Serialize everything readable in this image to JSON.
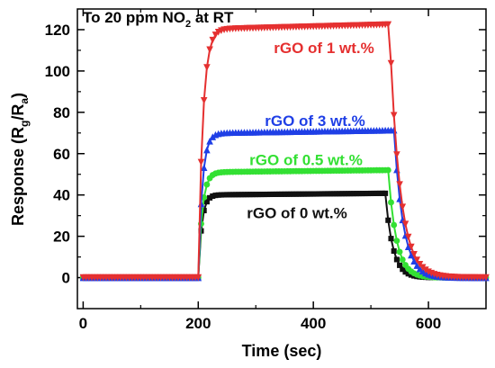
{
  "chart_data": {
    "type": "scatter",
    "title_prefix": "To 20 ppm NO",
    "title_subscript": "2",
    "title_suffix": " at RT",
    "xlabel": "Time (sec)",
    "ylabel_prefix": "Response (R",
    "ylabel_sub1": "g",
    "ylabel_mid": "/R",
    "ylabel_sub2": "a",
    "ylabel_suffix": ")",
    "xlim": [
      -10,
      700
    ],
    "ylim": [
      -15,
      130
    ],
    "xticks": [
      0,
      200,
      400,
      600
    ],
    "yticks": [
      0,
      20,
      40,
      60,
      80,
      100,
      120
    ],
    "x_step": 5,
    "gas_on": 200,
    "gas_off": 520,
    "series": [
      {
        "name": "rGO of 1 wt.%",
        "color": "#e53030",
        "marker": "triangle-down",
        "baseline": 0,
        "plateau": 120,
        "t_rise": 8,
        "t_fall": 18,
        "fall_delay": 12
      },
      {
        "name": "rGO of 3 wt.%",
        "color": "#1f3fe6",
        "marker": "triangle-up",
        "baseline": 0,
        "plateau": 70,
        "t_rise": 7,
        "t_fall": 16,
        "fall_delay": 20
      },
      {
        "name": "rGO of 0.5 wt.%",
        "color": "#33e033",
        "marker": "circle",
        "baseline": 0,
        "plateau": 51,
        "t_rise": 7,
        "t_fall": 14,
        "fall_delay": 10
      },
      {
        "name": "rGO of 0 wt.%",
        "color": "#111111",
        "marker": "square",
        "baseline": 0,
        "plateau": 40,
        "t_rise": 6,
        "t_fall": 13,
        "fall_delay": 5
      }
    ]
  }
}
